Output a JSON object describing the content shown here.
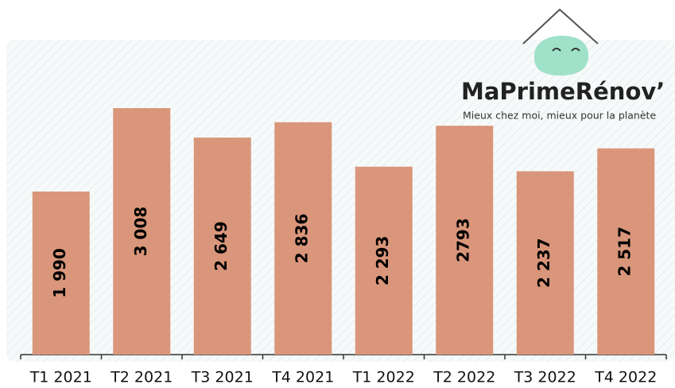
{
  "chart_data": {
    "type": "bar",
    "categories": [
      "T1 2021",
      "T2 2021",
      "T3 2021",
      "T4 2021",
      "T1 2022",
      "T2 2022",
      "T3 2022",
      "T4 2022"
    ],
    "values": [
      1990,
      3008,
      2649,
      2836,
      2293,
      2793,
      2237,
      2517
    ],
    "value_labels": [
      "1 990",
      "3 008",
      "2 649",
      "2 836",
      "2 293",
      "2793",
      "2 237",
      "2 517"
    ],
    "color": "#d9967a"
  },
  "logo": {
    "name": "MaPrimeRénov’",
    "tagline": "Mieux chez moi, mieux pour la planète"
  }
}
